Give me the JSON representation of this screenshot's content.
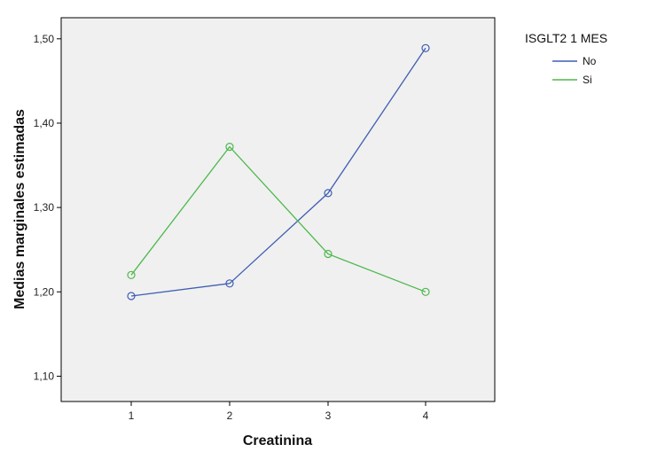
{
  "chart_data": {
    "type": "line",
    "xlabel": "Creatinina",
    "ylabel": "Medias marginales estimadas",
    "categories": [
      "1",
      "2",
      "3",
      "4"
    ],
    "ylim": [
      1.07,
      1.525
    ],
    "yticks": [
      1.1,
      1.2,
      1.3,
      1.4,
      1.5
    ],
    "ytick_labels": [
      "1,10",
      "1,20",
      "1,30",
      "1,40",
      "1,50"
    ],
    "legend_title": "ISGLT2 1 MES",
    "legend_position": "right, outside plot area",
    "grid": false,
    "plot_background": "#f0f0f0",
    "series": [
      {
        "name": "No",
        "color": "#3f5db3",
        "values": [
          1.195,
          1.21,
          1.317,
          1.489
        ]
      },
      {
        "name": "Si",
        "color": "#4cb84c",
        "values": [
          1.22,
          1.372,
          1.245,
          1.2
        ]
      }
    ]
  }
}
